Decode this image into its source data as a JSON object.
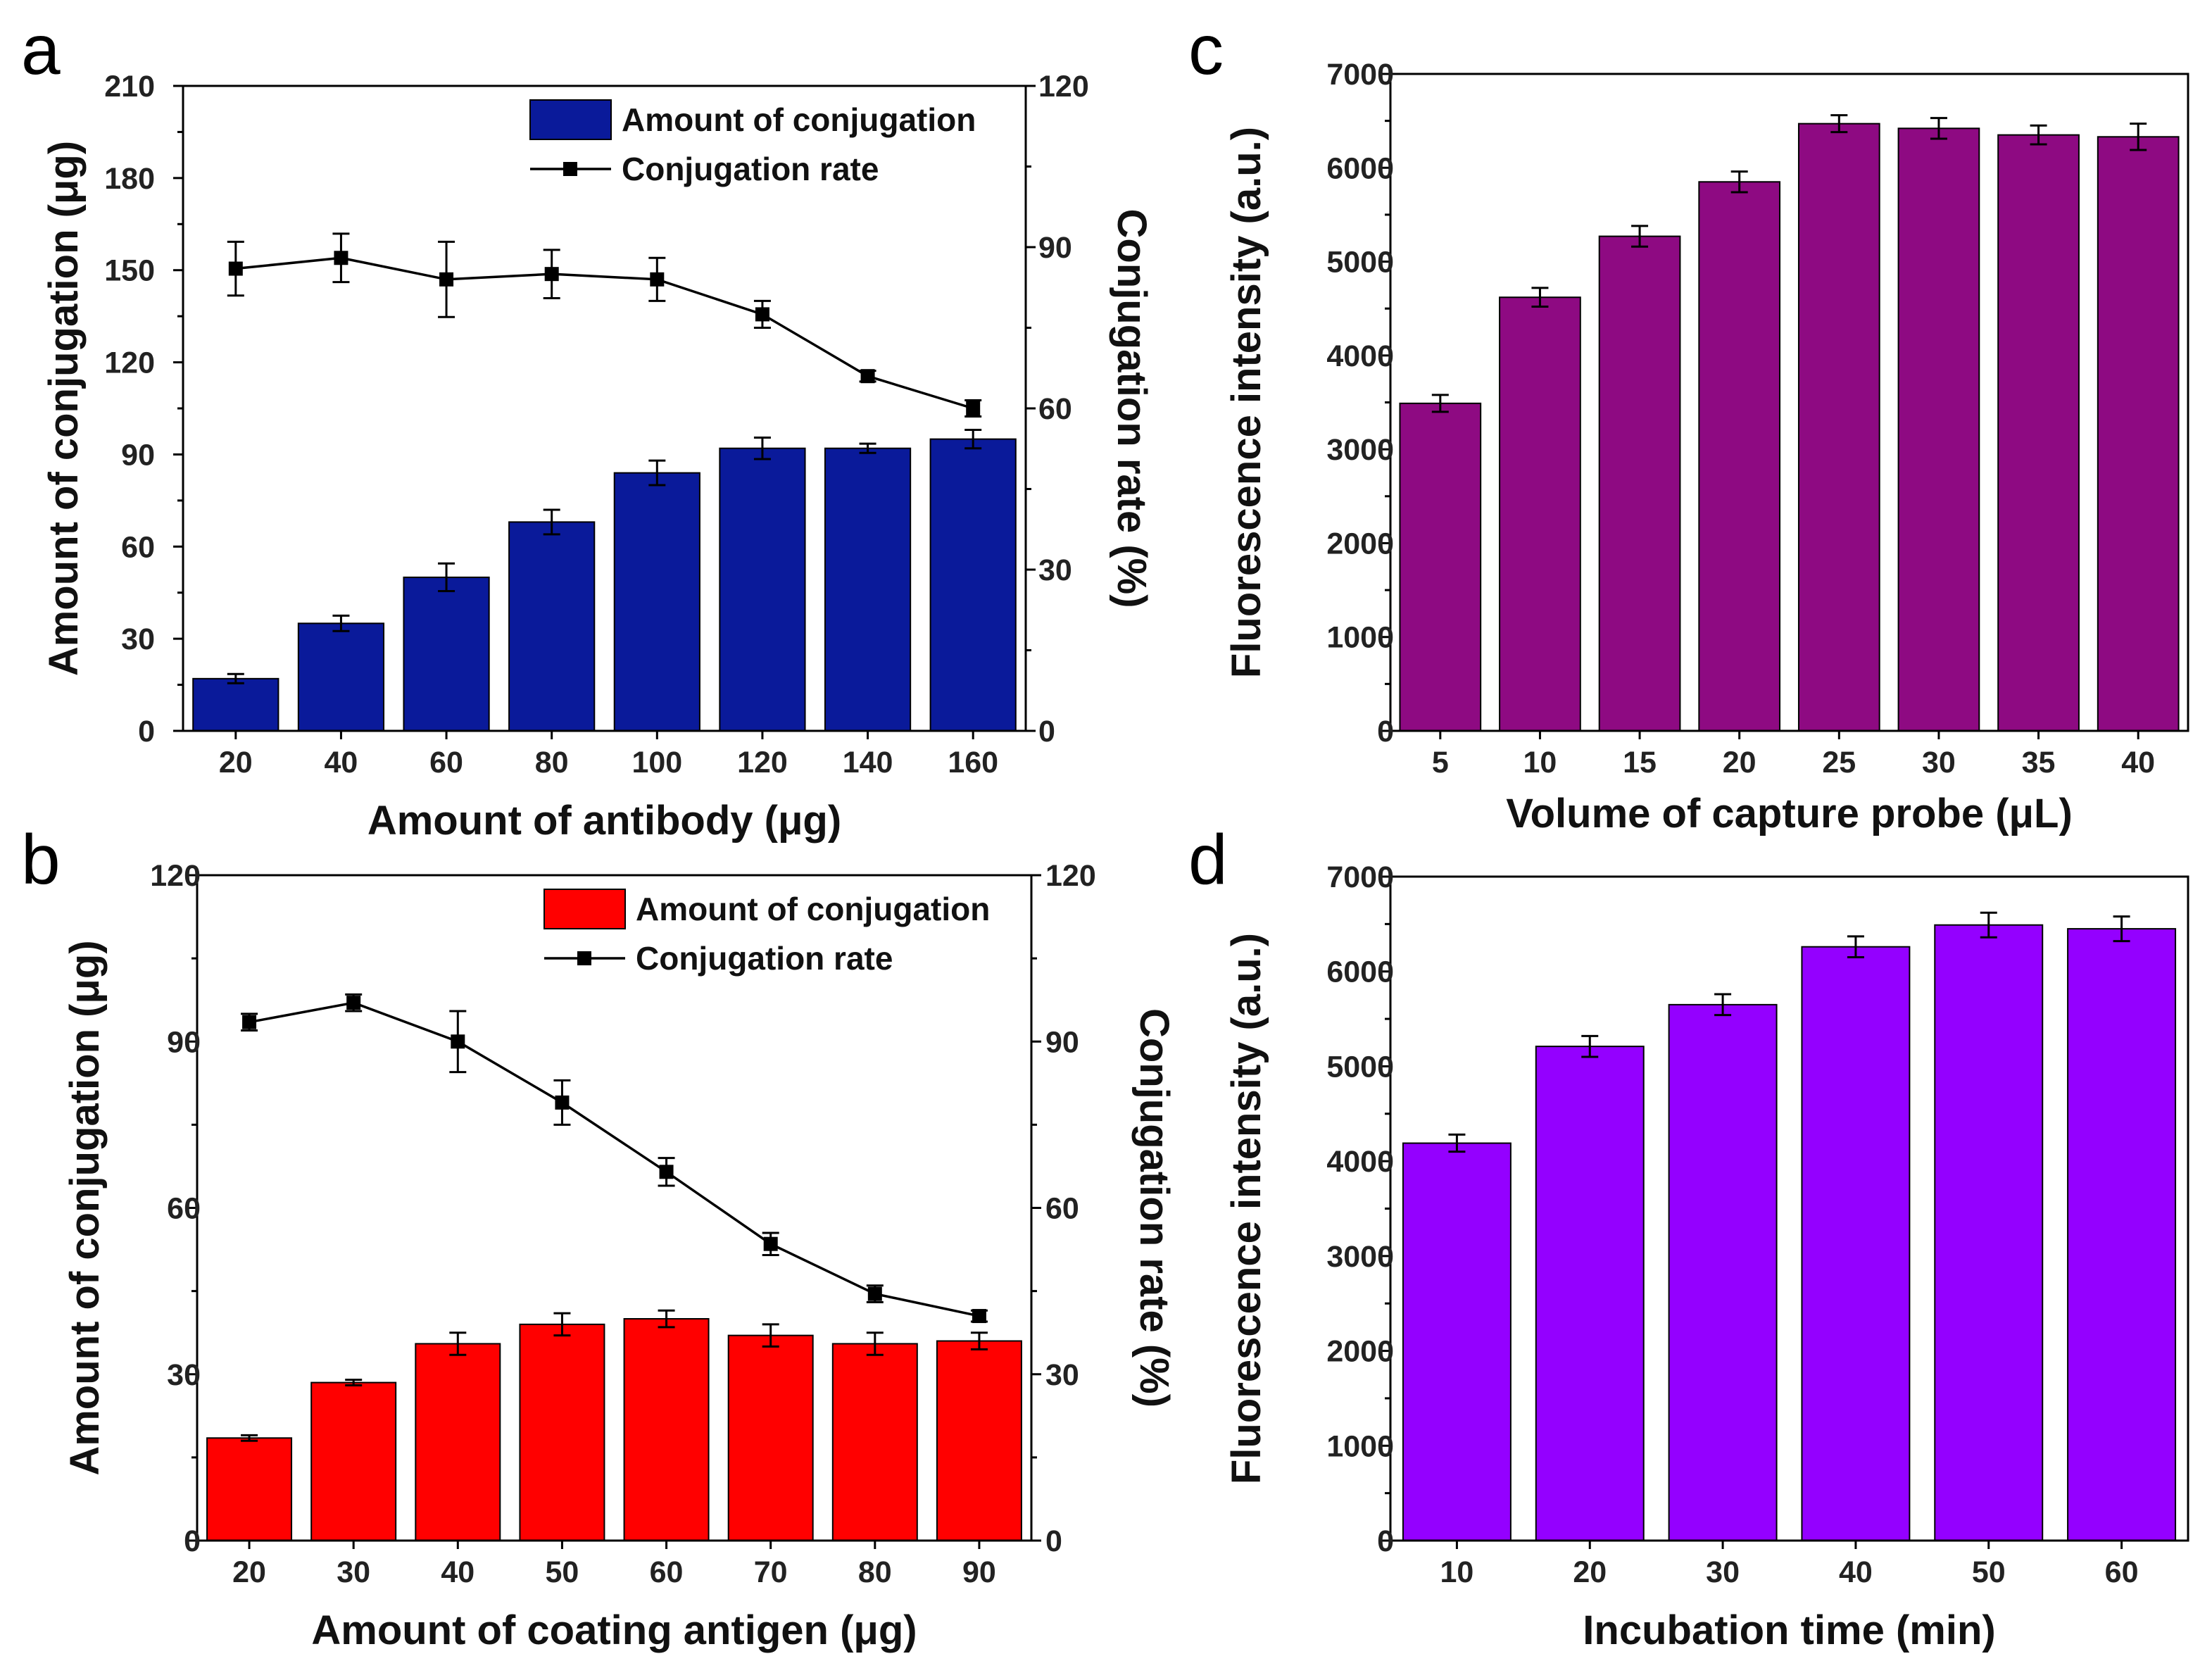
{
  "chart_data": [
    {
      "panel": "a",
      "type": "bar",
      "xlabel": "Amount of antibody (μg)",
      "ylabel": "Amount of conjugation (μg)",
      "y2label": "Conjugation rate (%)",
      "categories": [
        "20",
        "40",
        "60",
        "80",
        "100",
        "120",
        "140",
        "160"
      ],
      "ylim": [
        0,
        210
      ],
      "yticks": [
        0,
        30,
        60,
        90,
        120,
        150,
        180,
        210
      ],
      "y2lim": [
        0,
        120
      ],
      "y2ticks": [
        0,
        30,
        60,
        90,
        120
      ],
      "color": "#0A1A9A",
      "series": [
        {
          "name": "Amount of conjugation",
          "kind": "bar",
          "axis": "left",
          "values": [
            17,
            35,
            50,
            68,
            84,
            92,
            92,
            95
          ],
          "errors": [
            1.5,
            2.5,
            4.5,
            4,
            4,
            3.5,
            1.5,
            3
          ]
        },
        {
          "name": "Conjugation rate",
          "kind": "line",
          "axis": "right",
          "values": [
            86,
            88,
            84,
            85,
            84,
            77.5,
            66,
            60
          ],
          "errors": [
            5,
            4.5,
            7,
            4.5,
            4,
            2.5,
            1,
            1.5
          ]
        }
      ]
    },
    {
      "panel": "b",
      "type": "bar",
      "xlabel": "Amount of coating antigen (μg)",
      "ylabel": "Amount of conjugation (μg)",
      "y2label": "Conjugation rate (%)",
      "categories": [
        "20",
        "30",
        "40",
        "50",
        "60",
        "70",
        "80",
        "90"
      ],
      "ylim": [
        0,
        120
      ],
      "yticks": [
        0,
        30,
        60,
        90,
        120
      ],
      "y2lim": [
        0,
        120
      ],
      "y2ticks": [
        0,
        30,
        60,
        90,
        120
      ],
      "color": "#FF0000",
      "series": [
        {
          "name": "Amount of conjugation",
          "kind": "bar",
          "axis": "left",
          "values": [
            18.5,
            28.5,
            35.5,
            39,
            40,
            37,
            35.5,
            36
          ],
          "errors": [
            0.5,
            0.5,
            2,
            2,
            1.5,
            2,
            2,
            1.5
          ]
        },
        {
          "name": "Conjugation rate",
          "kind": "line",
          "axis": "right",
          "values": [
            93.5,
            97,
            90,
            79,
            66.5,
            53.5,
            44.5,
            40.5
          ],
          "errors": [
            1.5,
            1.5,
            5.5,
            4,
            2.5,
            2,
            1.5,
            1
          ]
        }
      ]
    },
    {
      "panel": "c",
      "type": "bar",
      "xlabel": "Volume of capture probe (μL)",
      "ylabel": "Fluorescence intensity (a.u.)",
      "categories": [
        "5",
        "10",
        "15",
        "20",
        "25",
        "30",
        "35",
        "40"
      ],
      "ylim": [
        0,
        7000
      ],
      "yticks": [
        0,
        1000,
        2000,
        3000,
        4000,
        5000,
        6000,
        7000
      ],
      "color": "#8E0A82",
      "series": [
        {
          "name": "Fluorescence intensity",
          "kind": "bar",
          "axis": "left",
          "values": [
            3490,
            4620,
            5270,
            5850,
            6470,
            6420,
            6350,
            6330
          ],
          "errors": [
            90,
            100,
            110,
            110,
            90,
            110,
            100,
            140
          ]
        }
      ]
    },
    {
      "panel": "d",
      "type": "bar",
      "xlabel": "Incubation time (min)",
      "ylabel": "Fluorescence intensity (a.u.)",
      "categories": [
        "10",
        "20",
        "30",
        "40",
        "50",
        "60"
      ],
      "ylim": [
        0,
        7000
      ],
      "yticks": [
        0,
        1000,
        2000,
        3000,
        4000,
        5000,
        6000,
        7000
      ],
      "color": "#9400FF",
      "series": [
        {
          "name": "Fluorescence intensity",
          "kind": "bar",
          "axis": "left",
          "values": [
            4190,
            5210,
            5650,
            6260,
            6490,
            6450
          ],
          "errors": [
            90,
            110,
            110,
            110,
            130,
            130
          ]
        }
      ]
    }
  ]
}
